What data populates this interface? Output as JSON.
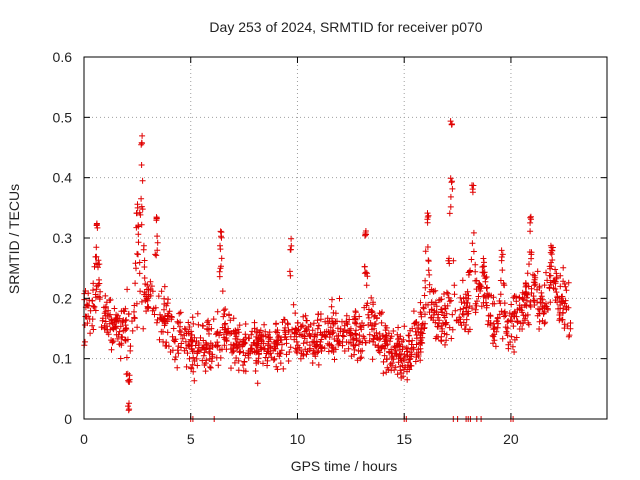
{
  "chart_data": {
    "type": "scatter",
    "title": "Day 253 of 2024, SRMTID for receiver p070",
    "xlabel": "GPS time / hours",
    "ylabel": "SRMTID / TECUs",
    "xlim": [
      0,
      24.5
    ],
    "ylim": [
      0,
      0.6
    ],
    "x_ticks": [
      0,
      5,
      10,
      15,
      20
    ],
    "y_ticks": [
      0,
      0.1,
      0.2,
      0.3,
      0.4,
      0.5,
      0.6
    ],
    "x_tick_labels": [
      "0",
      "5",
      "10",
      "15",
      "20"
    ],
    "y_tick_labels": [
      "0",
      "0.1",
      "0.2",
      "0.3",
      "0.4",
      "0.5",
      "0.6"
    ],
    "grid": true,
    "marker": "+",
    "color": "#e00000",
    "trend": [
      [
        0.0,
        0.17
      ],
      [
        0.5,
        0.19
      ],
      [
        1.0,
        0.17
      ],
      [
        1.5,
        0.15
      ],
      [
        2.0,
        0.16
      ],
      [
        2.5,
        0.19
      ],
      [
        3.0,
        0.2
      ],
      [
        3.5,
        0.18
      ],
      [
        4.0,
        0.15
      ],
      [
        4.5,
        0.13
      ],
      [
        5.0,
        0.12
      ],
      [
        5.5,
        0.12
      ],
      [
        6.0,
        0.11
      ],
      [
        6.5,
        0.14
      ],
      [
        7.0,
        0.13
      ],
      [
        7.5,
        0.12
      ],
      [
        8.0,
        0.12
      ],
      [
        8.5,
        0.13
      ],
      [
        9.0,
        0.12
      ],
      [
        9.5,
        0.13
      ],
      [
        10.0,
        0.14
      ],
      [
        10.5,
        0.13
      ],
      [
        11.0,
        0.14
      ],
      [
        11.5,
        0.14
      ],
      [
        12.0,
        0.15
      ],
      [
        12.5,
        0.14
      ],
      [
        13.0,
        0.14
      ],
      [
        13.5,
        0.15
      ],
      [
        14.0,
        0.13
      ],
      [
        14.5,
        0.11
      ],
      [
        15.0,
        0.1
      ],
      [
        15.5,
        0.13
      ],
      [
        16.0,
        0.17
      ],
      [
        16.5,
        0.18
      ],
      [
        17.0,
        0.16
      ],
      [
        17.5,
        0.17
      ],
      [
        18.0,
        0.19
      ],
      [
        18.5,
        0.21
      ],
      [
        19.0,
        0.17
      ],
      [
        19.5,
        0.15
      ],
      [
        20.0,
        0.16
      ],
      [
        20.5,
        0.18
      ],
      [
        21.0,
        0.22
      ],
      [
        21.5,
        0.19
      ],
      [
        22.0,
        0.21
      ],
      [
        22.5,
        0.19
      ],
      [
        22.8,
        0.17
      ]
    ],
    "spread": 0.045,
    "peaks": [
      {
        "x": 0.6,
        "y": 0.33
      },
      {
        "x": 2.7,
        "y": 0.47
      },
      {
        "x": 2.5,
        "y": 0.36
      },
      {
        "x": 3.4,
        "y": 0.34
      },
      {
        "x": 6.4,
        "y": 0.32
      },
      {
        "x": 9.7,
        "y": 0.3
      },
      {
        "x": 13.2,
        "y": 0.32
      },
      {
        "x": 16.1,
        "y": 0.35
      },
      {
        "x": 17.2,
        "y": 0.5
      },
      {
        "x": 18.2,
        "y": 0.39
      },
      {
        "x": 18.7,
        "y": 0.27
      },
      {
        "x": 19.6,
        "y": 0.28
      },
      {
        "x": 20.9,
        "y": 0.34
      },
      {
        "x": 21.9,
        "y": 0.29
      },
      {
        "x": 2.1,
        "y": 0.03
      }
    ],
    "zero_points": [
      5.0,
      5.1,
      6.1,
      15.0,
      15.1,
      17.3,
      17.5,
      17.9,
      18.0,
      18.1,
      18.4,
      18.6,
      20.0,
      20.1
    ],
    "n_points": 1500
  }
}
